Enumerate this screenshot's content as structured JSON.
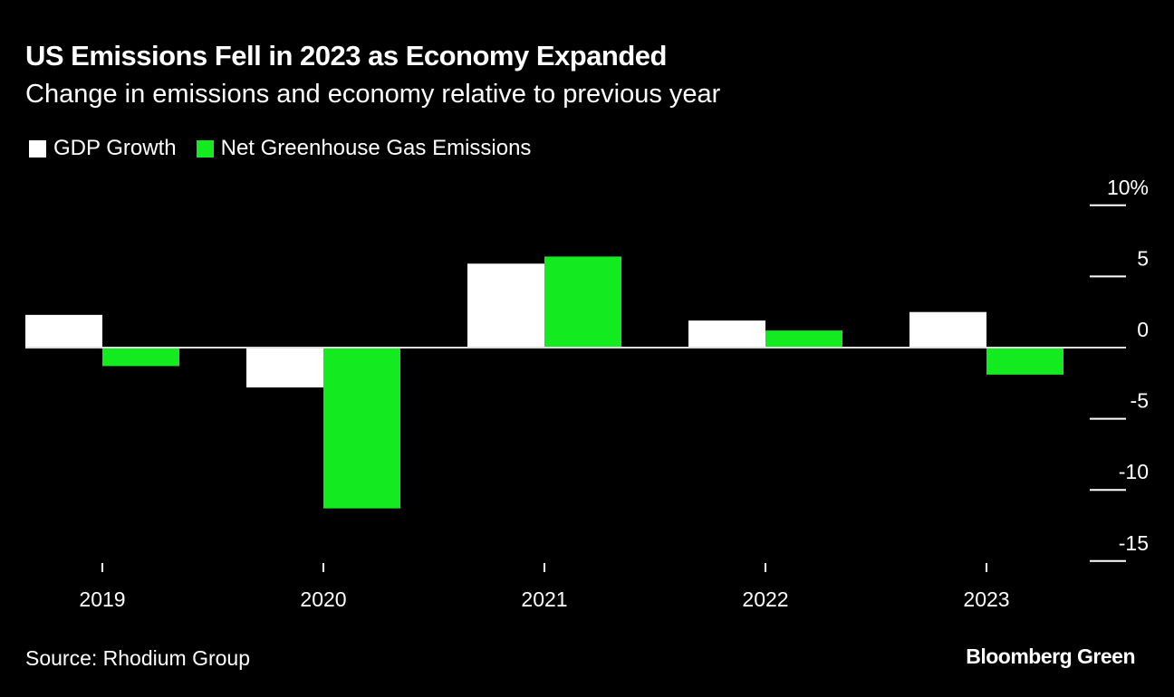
{
  "title": "US Emissions Fell in 2023 as Economy Expanded",
  "subtitle": "Change in emissions and economy relative to previous year",
  "source": "Source: Rhodium Group",
  "brand": "Bloomberg Green",
  "chart_data": {
    "type": "bar",
    "title": "US Emissions Fell in 2023 as Economy Expanded",
    "categories": [
      "2019",
      "2020",
      "2021",
      "2022",
      "2023"
    ],
    "series": [
      {
        "name": "GDP Growth",
        "color": "#ffffff",
        "values": [
          2.3,
          -2.8,
          5.9,
          1.9,
          2.5
        ]
      },
      {
        "name": "Net Greenhouse Gas Emissions",
        "color": "#13ea20",
        "values": [
          -1.3,
          -11.3,
          6.4,
          1.2,
          -1.9
        ]
      }
    ],
    "yticks": [
      10,
      5,
      0,
      -5,
      -10,
      -15
    ],
    "ytick_labels": [
      "10%",
      "5",
      "0",
      "-5",
      "-10",
      "-15"
    ],
    "ylim": [
      -15,
      10
    ],
    "xlabel": "",
    "ylabel": "",
    "legend": "top-left"
  }
}
